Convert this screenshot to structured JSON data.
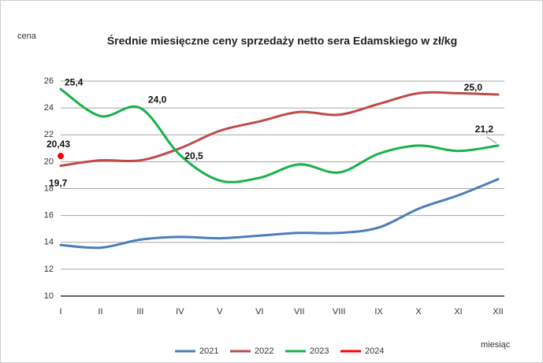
{
  "chart_data": {
    "type": "line",
    "title": "Średnie miesięczne ceny sprzedaży netto sera Edamskiego w zł/kg",
    "y_label": "cena",
    "x_label": "miesiąc",
    "categories": [
      "I",
      "II",
      "III",
      "IV",
      "V",
      "VI",
      "VII",
      "VIII",
      "IX",
      "X",
      "XI",
      "XII"
    ],
    "ylim": [
      10,
      26
    ],
    "yticks": [
      10,
      12,
      14,
      16,
      18,
      20,
      22,
      24,
      26
    ],
    "grid": true,
    "series": [
      {
        "name": "2021",
        "color": "#4a7ebb",
        "values": [
          13.8,
          13.6,
          14.2,
          14.4,
          14.3,
          14.5,
          14.7,
          14.7,
          15.1,
          16.5,
          17.5,
          18.7
        ]
      },
      {
        "name": "2022",
        "color": "#be4b48",
        "values": [
          19.7,
          20.1,
          20.1,
          21.0,
          22.3,
          23.0,
          23.7,
          23.5,
          24.3,
          25.1,
          25.1,
          25.0
        ],
        "value_labels": [
          "19,7",
          null,
          null,
          null,
          null,
          null,
          null,
          null,
          null,
          null,
          null,
          "25,0"
        ]
      },
      {
        "name": "2023",
        "color": "#17b14a",
        "values": [
          25.4,
          23.4,
          24.0,
          20.5,
          18.6,
          18.8,
          19.8,
          19.2,
          20.6,
          21.2,
          20.8,
          21.2
        ],
        "value_labels": [
          "25,4",
          null,
          "24,0",
          "20,5",
          null,
          null,
          null,
          null,
          null,
          null,
          null,
          "21,2"
        ]
      },
      {
        "name": "2024",
        "color": "#ff0000",
        "values": [
          20.43,
          null,
          null,
          null,
          null,
          null,
          null,
          null,
          null,
          null,
          null,
          null
        ],
        "value_labels": [
          "20,43",
          null,
          null,
          null,
          null,
          null,
          null,
          null,
          null,
          null,
          null,
          null
        ]
      }
    ]
  }
}
